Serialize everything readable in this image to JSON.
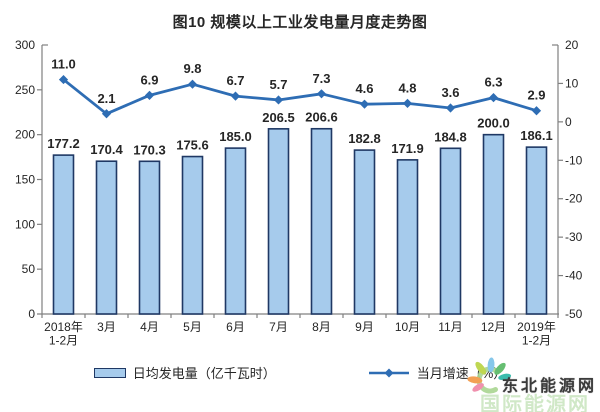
{
  "title": "图10  规模以上工业发电量月度走势图",
  "chart_data": {
    "type": "combo_bar_line",
    "title": "图10  规模以上工业发电量月度走势图",
    "categories": [
      "2018年\n1-2月",
      "3月",
      "4月",
      "5月",
      "6月",
      "7月",
      "8月",
      "9月",
      "10月",
      "11月",
      "12月",
      "2019年\n1-2月"
    ],
    "series": [
      {
        "name": "日均发电量（亿千瓦时）",
        "type": "bar",
        "axis": "left",
        "values": [
          177.2,
          170.4,
          170.3,
          175.6,
          185.0,
          206.5,
          206.6,
          182.8,
          171.9,
          184.8,
          200.0,
          186.1
        ]
      },
      {
        "name": "当月增速（%）",
        "type": "line",
        "axis": "right",
        "values": [
          11.0,
          2.1,
          6.9,
          9.8,
          6.7,
          5.7,
          7.3,
          4.6,
          4.8,
          3.6,
          6.3,
          2.9
        ]
      }
    ],
    "left_axis": {
      "min": 0,
      "max": 300,
      "step": 50
    },
    "right_axis": {
      "min": -50,
      "max": 20,
      "step": 10
    },
    "grid": false,
    "legend_position": "bottom",
    "value_label_decimals": 1
  },
  "colors": {
    "bar_fill": "#A6CBEC",
    "bar_border": "#1F3864",
    "line": "#2E6DB4",
    "axis": "#808080",
    "text": "#262626"
  },
  "watermark": {
    "site_name": "东北能源网",
    "ghost_text": "国际能源网"
  }
}
